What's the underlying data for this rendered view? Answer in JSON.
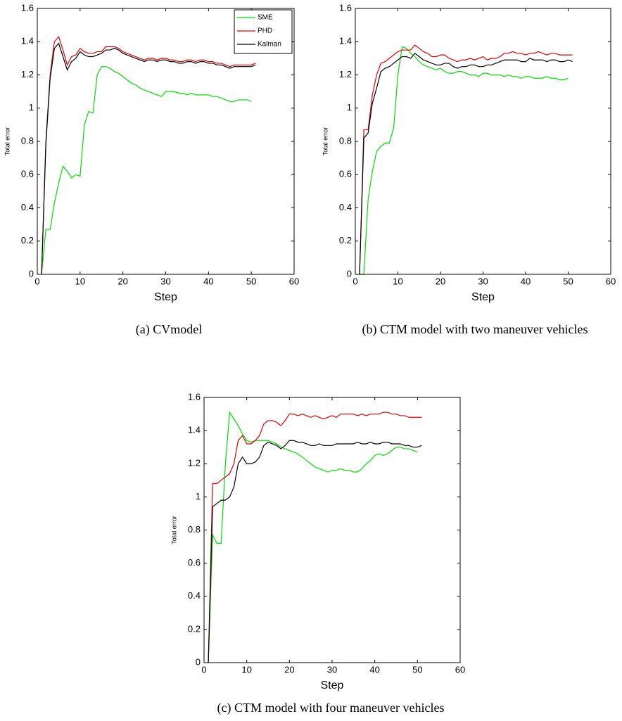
{
  "chart_data": [
    {
      "type": "line",
      "caption": "(a) CVmodel",
      "xlabel": "Step",
      "ylabel": "Total error",
      "x": [
        1,
        2,
        3,
        4,
        5,
        6,
        7,
        8,
        9,
        10,
        11,
        12,
        13,
        14,
        15,
        16,
        17,
        18,
        19,
        20,
        21,
        22,
        23,
        24,
        25,
        26,
        27,
        28,
        29,
        30,
        31,
        32,
        33,
        34,
        35,
        36,
        37,
        38,
        39,
        40,
        41,
        42,
        43,
        44,
        45,
        46,
        47,
        48,
        49,
        50,
        51
      ],
      "series": [
        {
          "name": "SME",
          "color": "#00dd00",
          "values": [
            0,
            0.27,
            0.27,
            0.43,
            0.55,
            0.65,
            0.62,
            0.58,
            0.6,
            0.59,
            0.9,
            0.98,
            0.97,
            1.2,
            1.25,
            1.25,
            1.24,
            1.22,
            1.21,
            1.19,
            1.17,
            1.15,
            1.14,
            1.12,
            1.11,
            1.1,
            1.09,
            1.08,
            1.07,
            1.1,
            1.1,
            1.1,
            1.09,
            1.09,
            1.08,
            1.09,
            1.08,
            1.08,
            1.08,
            1.08,
            1.07,
            1.07,
            1.06,
            1.05,
            1.04,
            1.04,
            1.05,
            1.05,
            1.05,
            1.04,
            null
          ]
        },
        {
          "name": "PHD",
          "color": "#e00000",
          "values": [
            0,
            0.8,
            1.2,
            1.4,
            1.43,
            1.35,
            1.26,
            1.31,
            1.32,
            1.36,
            1.34,
            1.33,
            1.33,
            1.34,
            1.34,
            1.37,
            1.37,
            1.37,
            1.36,
            1.34,
            1.33,
            1.32,
            1.31,
            1.3,
            1.29,
            1.3,
            1.3,
            1.29,
            1.3,
            1.3,
            1.29,
            1.29,
            1.28,
            1.28,
            1.29,
            1.29,
            1.28,
            1.29,
            1.29,
            1.28,
            1.28,
            1.27,
            1.27,
            1.26,
            1.25,
            1.26,
            1.26,
            1.26,
            1.26,
            1.26,
            1.27
          ]
        },
        {
          "name": "Kalman",
          "color": "#000000",
          "values": [
            0,
            0.78,
            1.18,
            1.36,
            1.39,
            1.31,
            1.23,
            1.28,
            1.3,
            1.34,
            1.32,
            1.31,
            1.31,
            1.32,
            1.33,
            1.35,
            1.35,
            1.36,
            1.35,
            1.33,
            1.32,
            1.31,
            1.3,
            1.29,
            1.28,
            1.29,
            1.29,
            1.28,
            1.29,
            1.29,
            1.28,
            1.28,
            1.27,
            1.27,
            1.28,
            1.28,
            1.27,
            1.28,
            1.28,
            1.27,
            1.27,
            1.26,
            1.26,
            1.25,
            1.24,
            1.25,
            1.25,
            1.25,
            1.25,
            1.25,
            1.26
          ]
        }
      ],
      "xlim": [
        0,
        60
      ],
      "xticks": [
        0,
        10,
        20,
        30,
        40,
        50,
        60
      ],
      "ylim": [
        0,
        1.6
      ],
      "yticks": [
        0,
        0.2,
        0.4,
        0.6,
        0.8,
        1,
        1.2,
        1.4,
        1.6
      ],
      "legend": "upper right"
    },
    {
      "type": "line",
      "caption": "(b) CTM model with two maneuver vehicles",
      "xlabel": "Step",
      "ylabel": "Total error",
      "x": [
        1,
        2,
        3,
        4,
        5,
        6,
        7,
        8,
        9,
        10,
        11,
        12,
        13,
        14,
        15,
        16,
        17,
        18,
        19,
        20,
        21,
        22,
        23,
        24,
        25,
        26,
        27,
        28,
        29,
        30,
        31,
        32,
        33,
        34,
        35,
        36,
        37,
        38,
        39,
        40,
        41,
        42,
        43,
        44,
        45,
        46,
        47,
        48,
        49,
        50,
        51
      ],
      "series": [
        {
          "name": "SME",
          "color": "#00dd00",
          "values": [
            0,
            0,
            0.45,
            0.62,
            0.74,
            0.77,
            0.79,
            0.79,
            0.88,
            1.2,
            1.37,
            1.36,
            1.33,
            1.31,
            1.28,
            1.26,
            1.25,
            1.24,
            1.23,
            1.24,
            1.22,
            1.21,
            1.21,
            1.22,
            1.22,
            1.21,
            1.2,
            1.2,
            1.19,
            1.21,
            1.21,
            1.2,
            1.2,
            1.2,
            1.19,
            1.2,
            1.19,
            1.19,
            1.18,
            1.19,
            1.19,
            1.18,
            1.18,
            1.18,
            1.19,
            1.18,
            1.18,
            1.17,
            1.17,
            1.18,
            null
          ]
        },
        {
          "name": "PHD",
          "color": "#e00000",
          "values": [
            0,
            0.87,
            0.87,
            1.08,
            1.2,
            1.27,
            1.28,
            1.3,
            1.32,
            1.34,
            1.35,
            1.35,
            1.35,
            1.38,
            1.36,
            1.34,
            1.33,
            1.31,
            1.31,
            1.32,
            1.32,
            1.3,
            1.29,
            1.28,
            1.29,
            1.29,
            1.3,
            1.29,
            1.3,
            1.31,
            1.29,
            1.3,
            1.3,
            1.31,
            1.33,
            1.33,
            1.34,
            1.33,
            1.33,
            1.32,
            1.33,
            1.33,
            1.34,
            1.33,
            1.32,
            1.33,
            1.33,
            1.32,
            1.32,
            1.32,
            1.32
          ]
        },
        {
          "name": "Kalman",
          "color": "#000000",
          "values": [
            0,
            0.82,
            0.85,
            1.03,
            1.12,
            1.22,
            1.24,
            1.25,
            1.27,
            1.29,
            1.31,
            1.31,
            1.3,
            1.33,
            1.31,
            1.29,
            1.28,
            1.27,
            1.26,
            1.26,
            1.27,
            1.27,
            1.25,
            1.24,
            1.25,
            1.25,
            1.26,
            1.26,
            1.25,
            1.25,
            1.26,
            1.26,
            1.27,
            1.28,
            1.29,
            1.29,
            1.29,
            1.29,
            1.28,
            1.28,
            1.3,
            1.29,
            1.29,
            1.29,
            1.28,
            1.29,
            1.29,
            1.28,
            1.28,
            1.29,
            1.28
          ]
        }
      ],
      "xlim": [
        0,
        60
      ],
      "xticks": [
        0,
        10,
        20,
        30,
        40,
        50,
        60
      ],
      "ylim": [
        0,
        1.6
      ],
      "yticks": [
        0,
        0.2,
        0.4,
        0.6,
        0.8,
        1,
        1.2,
        1.4,
        1.6
      ]
    },
    {
      "type": "line",
      "caption": "(c) CTM model with four maneuver vehicles",
      "xlabel": "Step",
      "ylabel": "Total error",
      "x": [
        1,
        2,
        3,
        4,
        5,
        6,
        7,
        8,
        9,
        10,
        11,
        12,
        13,
        14,
        15,
        16,
        17,
        18,
        19,
        20,
        21,
        22,
        23,
        24,
        25,
        26,
        27,
        28,
        29,
        30,
        31,
        32,
        33,
        34,
        35,
        36,
        37,
        38,
        39,
        40,
        41,
        42,
        43,
        44,
        45,
        46,
        47,
        48,
        49,
        50,
        51
      ],
      "series": [
        {
          "name": "SME",
          "color": "#00dd00",
          "values": [
            0,
            0.77,
            0.72,
            0.72,
            1.2,
            1.51,
            1.47,
            1.43,
            1.38,
            1.34,
            1.33,
            1.34,
            1.34,
            1.34,
            1.34,
            1.33,
            1.32,
            1.3,
            1.29,
            1.28,
            1.27,
            1.26,
            1.24,
            1.22,
            1.2,
            1.18,
            1.17,
            1.16,
            1.15,
            1.16,
            1.16,
            1.17,
            1.16,
            1.16,
            1.15,
            1.15,
            1.17,
            1.2,
            1.22,
            1.25,
            1.26,
            1.25,
            1.26,
            1.28,
            1.3,
            1.3,
            1.29,
            1.29,
            1.28,
            1.27,
            null
          ]
        },
        {
          "name": "PHD",
          "color": "#e00000",
          "values": [
            0,
            1.08,
            1.08,
            1.1,
            1.12,
            1.14,
            1.2,
            1.34,
            1.37,
            1.32,
            1.32,
            1.34,
            1.37,
            1.44,
            1.46,
            1.46,
            1.45,
            1.43,
            1.46,
            1.5,
            1.5,
            1.49,
            1.5,
            1.49,
            1.48,
            1.49,
            1.48,
            1.47,
            1.48,
            1.49,
            1.48,
            1.5,
            1.5,
            1.5,
            1.5,
            1.49,
            1.5,
            1.49,
            1.5,
            1.5,
            1.5,
            1.51,
            1.51,
            1.5,
            1.5,
            1.49,
            1.49,
            1.48,
            1.48,
            1.48,
            1.48
          ]
        },
        {
          "name": "Kalman",
          "color": "#000000",
          "values": [
            0,
            0.94,
            0.96,
            0.98,
            0.98,
            1.0,
            1.06,
            1.2,
            1.24,
            1.2,
            1.2,
            1.21,
            1.24,
            1.31,
            1.33,
            1.32,
            1.31,
            1.29,
            1.31,
            1.34,
            1.34,
            1.33,
            1.33,
            1.32,
            1.31,
            1.31,
            1.32,
            1.31,
            1.31,
            1.31,
            1.32,
            1.32,
            1.32,
            1.32,
            1.32,
            1.33,
            1.32,
            1.32,
            1.33,
            1.32,
            1.32,
            1.33,
            1.33,
            1.32,
            1.32,
            1.32,
            1.31,
            1.31,
            1.3,
            1.3,
            1.31
          ]
        }
      ],
      "xlim": [
        0,
        60
      ],
      "xticks": [
        0,
        10,
        20,
        30,
        40,
        50,
        60
      ],
      "ylim": [
        0,
        1.6
      ],
      "yticks": [
        0,
        0.2,
        0.4,
        0.6,
        0.8,
        1,
        1.2,
        1.4,
        1.6
      ]
    }
  ]
}
